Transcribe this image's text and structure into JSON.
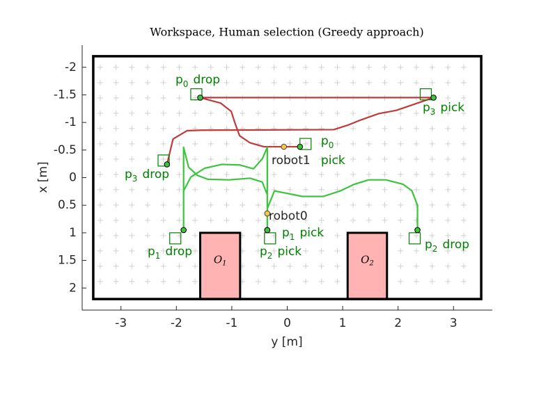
{
  "chart_data": {
    "type": "workspace",
    "title": "Workspace, Human selection (Greedy approach)",
    "x_label": "y [m]",
    "y_label": "x [m]",
    "xlim": [
      -3.7,
      3.7
    ],
    "ylim": [
      -2.4,
      2.4
    ],
    "y_reversed": true,
    "xticks": [
      -3,
      -2,
      -1,
      0,
      1,
      2,
      3
    ],
    "yticks": [
      -2,
      -1.5,
      -1,
      -0.5,
      0,
      0.5,
      1,
      1.5,
      2
    ],
    "workspace": {
      "x": [
        -3.5,
        3.5
      ],
      "y": [
        -2.2,
        2.2
      ]
    },
    "obstacles": [
      {
        "label_parts": [
          "O",
          "1"
        ],
        "x": [
          -1.57,
          -0.85
        ],
        "y": [
          1,
          2.2
        ],
        "color": "#ffb3b3"
      },
      {
        "label_parts": [
          "O",
          "2"
        ],
        "x": [
          1.09,
          1.8
        ],
        "y": [
          1,
          2.2
        ],
        "color": "#ffb3b3"
      }
    ],
    "paths": [
      {
        "color": "#c0393b",
        "x": [
          -0.06,
          0.23,
          -0.42,
          -0.67,
          -0.86,
          -0.95,
          -1.01,
          -1.2,
          -1.57,
          2.64,
          2.35,
          1.97,
          1.65,
          1.34,
          1.09,
          0.84,
          -1.55,
          -1.81,
          -2.06,
          -2.17
        ],
        "values": [
          -0.56,
          -0.56,
          -0.56,
          -0.63,
          -0.76,
          -1.01,
          -1.2,
          -1.35,
          -1.45,
          -1.45,
          -1.35,
          -1.22,
          -1.16,
          -1.05,
          -0.95,
          -0.87,
          -0.86,
          -0.85,
          -0.7,
          -0.24
        ]
      },
      {
        "color": "#3cc43c",
        "x": [
          -0.36,
          -0.36,
          -0.36,
          -0.45,
          -0.67,
          -1.05,
          -1.43,
          -1.62,
          -1.78,
          -1.87,
          -1.87,
          -1.87,
          -1.74,
          -1.49,
          -1.18,
          -0.86,
          -0.61,
          -0.45,
          -0.36,
          -0.36,
          -0.36,
          -0.23,
          0.27,
          0.65,
          0.96,
          1.21,
          1.47,
          1.78,
          2.09,
          2.25,
          2.35,
          2.35
        ],
        "values": [
          0.65,
          0.95,
          0.31,
          0.08,
          0.01,
          0.04,
          0.03,
          -0.04,
          -0.19,
          -0.55,
          0.95,
          0.24,
          -0.01,
          -0.17,
          -0.24,
          -0.23,
          -0.16,
          -0.34,
          -0.55,
          0.95,
          0.56,
          0.24,
          0.34,
          0.34,
          0.24,
          0.12,
          0.04,
          0.04,
          0.12,
          0.24,
          0.5,
          0.95
        ]
      }
    ],
    "target_color": "#008000",
    "targets": [
      {
        "label_parts": [
          "p",
          "0",
          "drop"
        ],
        "x": -1.57,
        "y": -1.45
      },
      {
        "label_parts": [
          "p",
          "0",
          "pick"
        ],
        "x": 0.23,
        "y": -0.56
      },
      {
        "label_parts": [
          "p",
          "3",
          "pick"
        ],
        "x": 2.64,
        "y": -1.45
      },
      {
        "label_parts": [
          "p",
          "3",
          "drop"
        ],
        "x": -2.17,
        "y": -0.24
      },
      {
        "label_parts": [
          "p",
          "1",
          "drop"
        ],
        "x": -1.87,
        "y": 0.95
      },
      {
        "label_parts": [
          "p",
          "1",
          "pick"
        ],
        "x": -0.36,
        "y": 0.95
      },
      {
        "label_parts": [
          "p",
          "2",
          "pick"
        ],
        "x": -0.36,
        "y": 0.95
      },
      {
        "label_parts": [
          "p",
          "2",
          "drop"
        ],
        "x": 2.35,
        "y": 0.95
      }
    ],
    "squares": {
      "x": [
        -1.64,
        0.33,
        2.5,
        -2.23,
        -2.02,
        -0.31,
        2.3
      ],
      "values": [
        -1.51,
        -0.61,
        -1.51,
        -0.31,
        1.1,
        1.1,
        1.1
      ]
    },
    "robot_color": "#f5c842",
    "robots": [
      {
        "label": "robot0",
        "x": -0.36,
        "y": 0.65
      },
      {
        "label": "robot1",
        "x": -0.06,
        "y": -0.56
      }
    ]
  }
}
